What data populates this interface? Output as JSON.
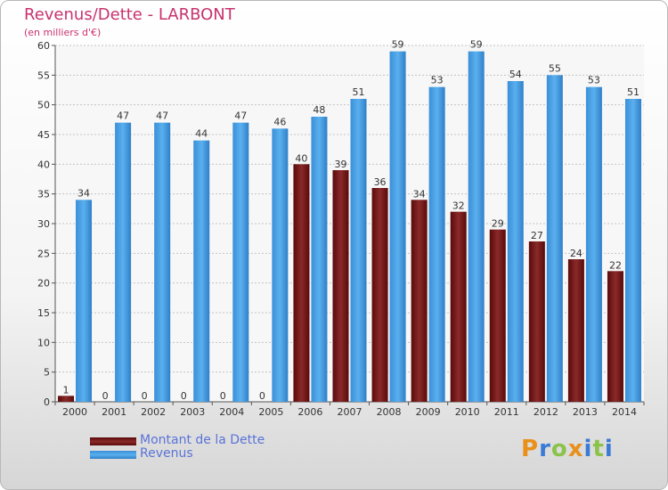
{
  "header": {
    "title": "Revenus/Dette - LARBONT",
    "subtitle": "(en milliers d'€)"
  },
  "logo": {
    "text": "Proxiti",
    "letters": [
      "P",
      "r",
      "o",
      "x",
      "i",
      "t",
      "i"
    ],
    "colors": [
      "#e8901a",
      "#3a7bd5",
      "#8bc34a",
      "#e8901a",
      "#3a7bd5",
      "#8bc34a",
      "#3a7bd5"
    ]
  },
  "colors": {
    "dette": "#7a1a1a",
    "revenus": "#4a9fe0"
  },
  "chart_data": {
    "type": "bar",
    "categories": [
      "2000",
      "2001",
      "2002",
      "2003",
      "2004",
      "2005",
      "2006",
      "2007",
      "2008",
      "2009",
      "2010",
      "2011",
      "2012",
      "2013",
      "2014"
    ],
    "series": [
      {
        "name": "Montant de la Dette",
        "values": [
          1,
          0,
          0,
          0,
          0,
          0,
          40,
          39,
          36,
          34,
          32,
          29,
          27,
          24,
          22
        ]
      },
      {
        "name": "Revenus",
        "values": [
          34,
          47,
          47,
          44,
          47,
          46,
          48,
          51,
          59,
          53,
          59,
          54,
          55,
          53,
          51
        ]
      }
    ],
    "ylim": [
      0,
      60
    ],
    "yticks": [
      0,
      5,
      10,
      15,
      20,
      25,
      30,
      35,
      40,
      45,
      50,
      55,
      60
    ],
    "grid": true,
    "legend": "bottom-left"
  }
}
